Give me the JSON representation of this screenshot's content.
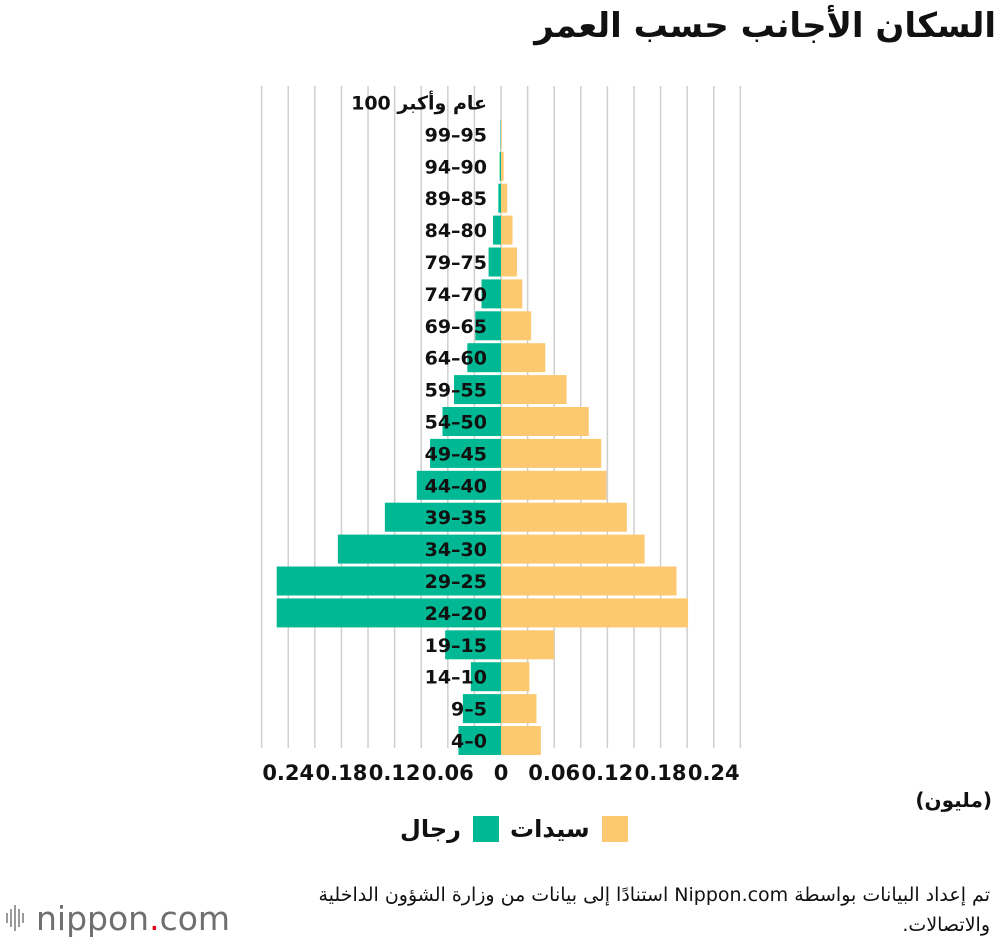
{
  "title": "السكان الأجانب حسب العمر",
  "unit_label": "(مليون)",
  "legend": {
    "women_label": "سيدات",
    "men_label": "رجال"
  },
  "colors": {
    "men": "#00b894",
    "women": "#fcc870",
    "grid": "#cfcfcf",
    "text": "#111111"
  },
  "source": "تم إعداد البيانات بواسطة Nippon.com استنادًا إلى بيانات من وزارة الشؤون الداخلية والاتصالات.",
  "brand": {
    "name": "nippon",
    "dot": ".",
    "suffix": "com"
  },
  "chart_data": {
    "type": "bar",
    "orientation": "horizontal-population-pyramid",
    "xlim": [
      -0.27,
      0.27
    ],
    "ticks": [
      -0.24,
      -0.18,
      -0.12,
      -0.06,
      0,
      0.06,
      0.12,
      0.18,
      0.24
    ],
    "tick_labels": [
      "0.24",
      "0.18",
      "0.12",
      "0.06",
      "0",
      "0.06",
      "0.12",
      "0.18",
      "0.24"
    ],
    "grid": true,
    "legend_position": "bottom",
    "categories": [
      "100 عام وأكبر",
      "99–95",
      "94–90",
      "89–85",
      "84–80",
      "79–75",
      "74–70",
      "69–65",
      "64–60",
      "59–55",
      "54–50",
      "49–45",
      "44–40",
      "39–35",
      "34–30",
      "29–25",
      "24–20",
      "19–15",
      "14–10",
      "9–5",
      "4–0"
    ],
    "series": [
      {
        "name": "رجال",
        "side": "left",
        "values": [
          0.0,
          0.0005,
          0.0015,
          0.003,
          0.009,
          0.014,
          0.022,
          0.029,
          0.038,
          0.053,
          0.066,
          0.08,
          0.095,
          0.131,
          0.184,
          0.253,
          0.253,
          0.063,
          0.034,
          0.043,
          0.048
        ]
      },
      {
        "name": "سيدات",
        "side": "right",
        "values": [
          0.0,
          0.0008,
          0.003,
          0.007,
          0.013,
          0.018,
          0.024,
          0.034,
          0.05,
          0.074,
          0.099,
          0.113,
          0.119,
          0.142,
          0.162,
          0.198,
          0.211,
          0.06,
          0.032,
          0.04,
          0.045
        ]
      }
    ]
  }
}
